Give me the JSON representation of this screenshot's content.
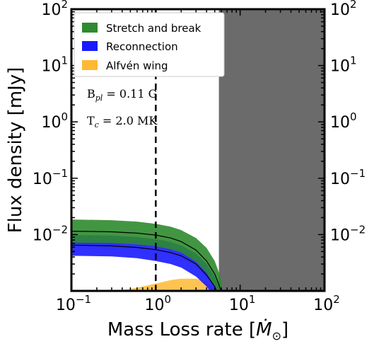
{
  "chart_data": {
    "type": "area",
    "xscale": "log",
    "yscale": "log",
    "xlim": [
      0.1,
      100
    ],
    "ylim": [
      0.001,
      100
    ],
    "xlabel_main": "Mass Loss rate",
    "xlabel_unit": "Ṁ",
    "xlabel_sub": "⊙",
    "ylabel": "Flux density [mJy]",
    "xticks": [
      {
        "value": 0.1,
        "base": "10",
        "exp": "−1"
      },
      {
        "value": 1,
        "base": "10",
        "exp": "0"
      },
      {
        "value": 10,
        "base": "10",
        "exp": "1"
      },
      {
        "value": 100,
        "base": "10",
        "exp": "2"
      }
    ],
    "yticks": [
      {
        "value": 0.01,
        "base": "10",
        "exp": "−2"
      },
      {
        "value": 0.1,
        "base": "10",
        "exp": "−1"
      },
      {
        "value": 1,
        "base": "10",
        "exp": "0"
      },
      {
        "value": 10,
        "base": "10",
        "exp": "1"
      },
      {
        "value": 100,
        "base": "10",
        "exp": "2"
      }
    ],
    "legend_placement": "top-left",
    "series": [
      {
        "name": "Stretch and break",
        "color": "#2e8b2e",
        "x": [
          0.1,
          0.3,
          0.6,
          1.0,
          1.5,
          2.0,
          3.0,
          4.0,
          5.0,
          5.5,
          6.0
        ],
        "lower": [
          0.0072,
          0.0071,
          0.0067,
          0.0062,
          0.0055,
          0.0048,
          0.0033,
          0.0021,
          0.0012,
          0.00085,
          0.0006
        ],
        "upper": [
          0.0185,
          0.018,
          0.017,
          0.0155,
          0.0138,
          0.012,
          0.0087,
          0.0058,
          0.0034,
          0.0023,
          0.0015
        ],
        "line": [
          0.0115,
          0.0112,
          0.0106,
          0.0098,
          0.0087,
          0.0075,
          0.0053,
          0.0034,
          0.002,
          0.0014,
          0.00095
        ]
      },
      {
        "name": "Reconnection",
        "color": "#1a1aff",
        "x": [
          0.1,
          0.3,
          0.6,
          1.0,
          1.5,
          2.0,
          3.0,
          4.0,
          5.0,
          5.5,
          6.0
        ],
        "lower": [
          0.0042,
          0.0041,
          0.0038,
          0.0034,
          0.003,
          0.0026,
          0.0018,
          0.0012,
          0.00075,
          0.00055,
          0.0004
        ],
        "upper": [
          0.0098,
          0.0096,
          0.009,
          0.0083,
          0.0074,
          0.0064,
          0.0046,
          0.003,
          0.0018,
          0.0013,
          0.0009
        ],
        "line": [
          0.0065,
          0.0063,
          0.0059,
          0.0054,
          0.0048,
          0.0042,
          0.003,
          0.0019,
          0.0012,
          0.00085,
          0.0006
        ]
      },
      {
        "name": "Alfvén wing",
        "color": "#ffb833",
        "x": [
          0.3,
          0.5,
          0.8,
          1.0,
          1.5,
          2.0,
          3.0,
          4.0,
          5.0,
          5.5
        ],
        "lower": [
          0.001,
          0.001,
          0.001,
          0.001,
          0.001,
          0.001,
          0.001,
          0.001,
          0.001,
          0.001
        ],
        "upper": [
          0.001,
          0.00108,
          0.00125,
          0.00135,
          0.00155,
          0.00165,
          0.00165,
          0.00145,
          0.0011,
          0.001
        ],
        "line": null
      }
    ],
    "vline": {
      "x": 1.0,
      "style": "dashed"
    },
    "shaded_region": {
      "x_from": 5.6,
      "x_to": 100,
      "color": "#6b6b6b"
    },
    "annotations": [
      {
        "base": "B",
        "sub": "pl",
        "rest": " = 0.11 G"
      },
      {
        "base": "T",
        "sub": "c",
        "rest": " = 2.0 MK"
      }
    ]
  }
}
